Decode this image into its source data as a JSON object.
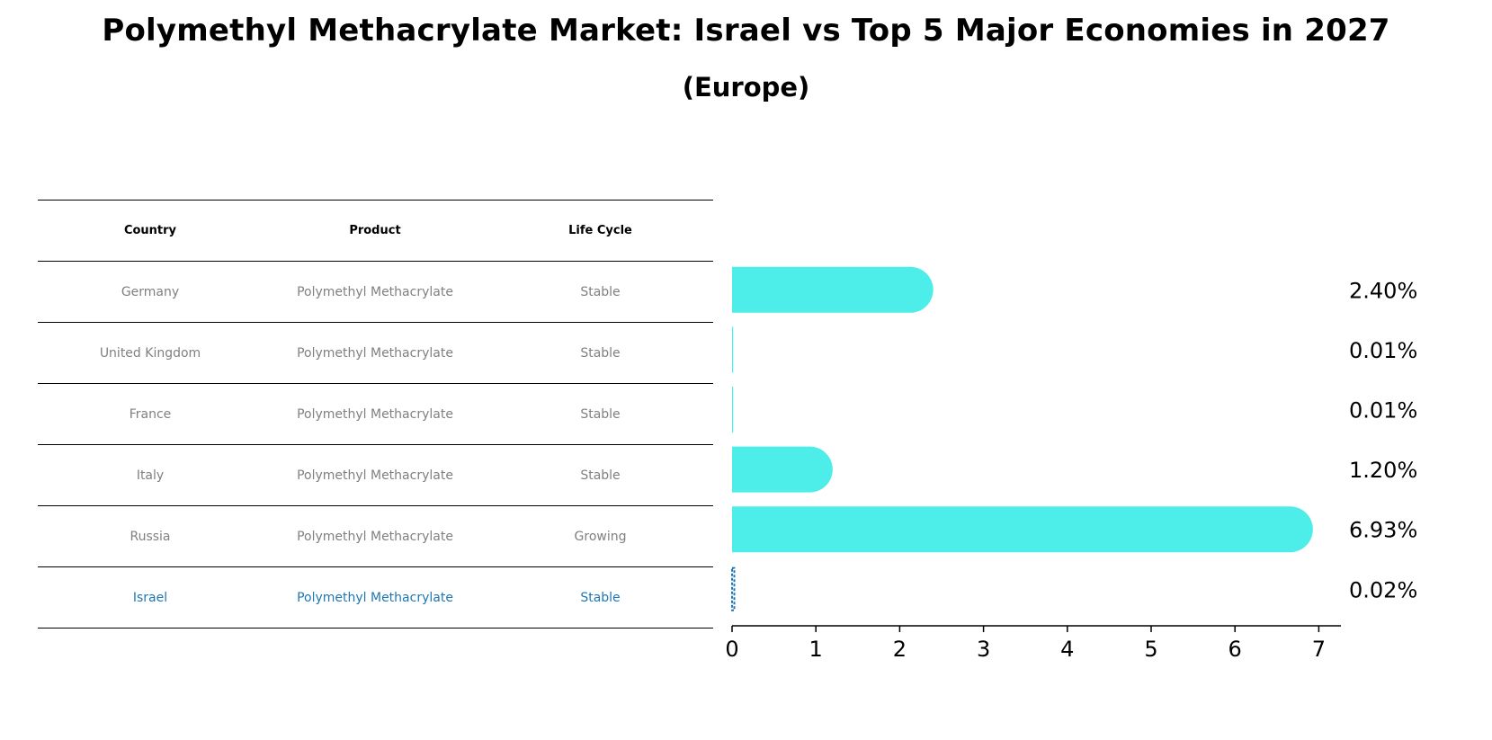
{
  "title": "Polymethyl Methacrylate Market: Israel vs Top 5 Major Economies in 2027",
  "subtitle": "(Europe)",
  "table": {
    "headers": [
      "Country",
      "Product",
      "Life Cycle"
    ],
    "rows": [
      {
        "country": "Germany",
        "product": "Polymethyl Methacrylate",
        "life_cycle": "Stable"
      },
      {
        "country": "United Kingdom",
        "product": "Polymethyl Methacrylate",
        "life_cycle": "Stable"
      },
      {
        "country": "France",
        "product": "Polymethyl Methacrylate",
        "life_cycle": "Stable"
      },
      {
        "country": "Italy",
        "product": "Polymethyl Methacrylate",
        "life_cycle": "Stable"
      },
      {
        "country": "Russia",
        "product": "Polymethyl Methacrylate",
        "life_cycle": "Growing"
      },
      {
        "country": "Israel",
        "product": "Polymethyl Methacrylate",
        "life_cycle": "Stable"
      }
    ]
  },
  "colors": {
    "bar": "#4dede9",
    "highlight": "#1f77b4",
    "muted": "#808080"
  },
  "chart_data": {
    "type": "bar",
    "orientation": "horizontal",
    "title": "Polymethyl Methacrylate Market: Israel vs Top 5 Major Economies in 2027",
    "subtitle": "(Europe)",
    "categories": [
      "Germany",
      "United Kingdom",
      "France",
      "Italy",
      "Russia",
      "Israel"
    ],
    "values": [
      2.4,
      0.01,
      0.01,
      1.2,
      6.93,
      0.02
    ],
    "value_labels": [
      "2.40%",
      "0.01%",
      "0.01%",
      "1.20%",
      "6.93%",
      "0.02%"
    ],
    "highlight_category": "Israel",
    "xlim": [
      0,
      7.3
    ],
    "xticks": [
      0,
      1,
      2,
      3,
      4,
      5,
      6,
      7
    ],
    "xlabel": "",
    "ylabel": "",
    "grid": false
  }
}
